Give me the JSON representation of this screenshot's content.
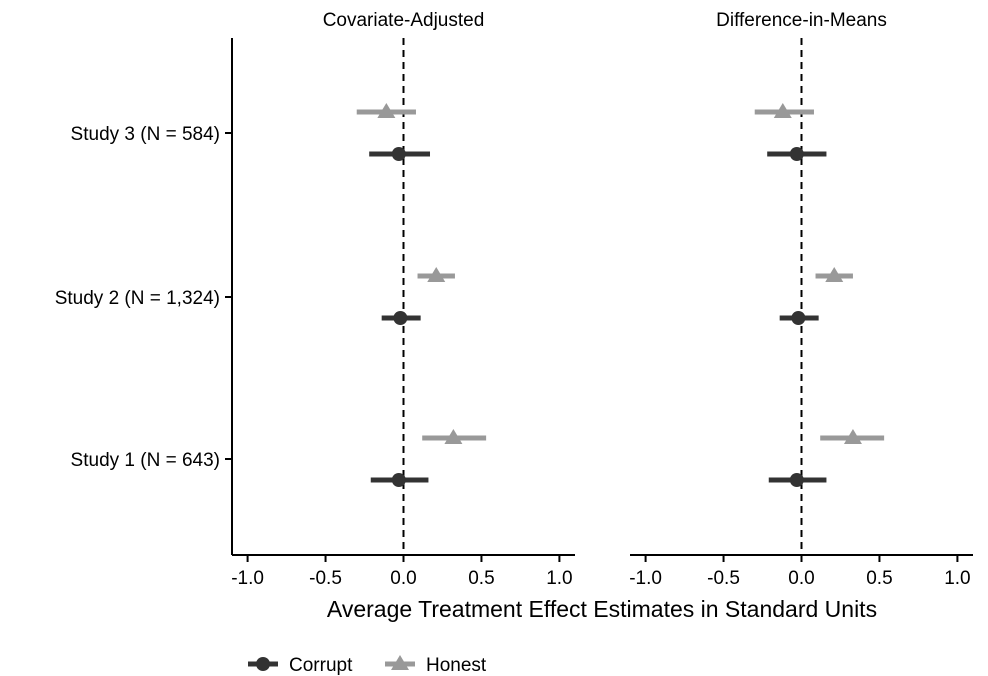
{
  "chart_data": {
    "type": "scatter",
    "subtype": "coefficient-plot",
    "xlabel": "Average Treatment Effect Estimates in Standard Units",
    "xlim": [
      -1.1,
      1.1
    ],
    "x_ticks": [
      -1.0,
      -0.5,
      0.0,
      0.5,
      1.0
    ],
    "x_tick_labels": [
      "-1.0",
      "-0.5",
      "0.0",
      "0.5",
      "1.0"
    ],
    "reference_line": 0,
    "categories": [
      "Study 3 (N = 584)",
      "Study 2 (N = 1,324)",
      "Study 1 (N = 643)"
    ],
    "legend": {
      "placement": "bottom",
      "entries": [
        {
          "name": "Corrupt",
          "color": "#333333",
          "marker": "circle"
        },
        {
          "name": "Honest",
          "color": "#999999",
          "marker": "triangle"
        }
      ]
    },
    "panels": [
      {
        "title": "Covariate-Adjusted",
        "series": [
          {
            "name": "Corrupt",
            "points": [
              {
                "study": "Study 3 (N = 584)",
                "estimate": -0.03,
                "lower": -0.22,
                "upper": 0.17
              },
              {
                "study": "Study 2 (N = 1,324)",
                "estimate": -0.02,
                "lower": -0.14,
                "upper": 0.11
              },
              {
                "study": "Study 1 (N = 643)",
                "estimate": -0.03,
                "lower": -0.21,
                "upper": 0.16
              }
            ]
          },
          {
            "name": "Honest",
            "points": [
              {
                "study": "Study 3 (N = 584)",
                "estimate": -0.11,
                "lower": -0.3,
                "upper": 0.08
              },
              {
                "study": "Study 2 (N = 1,324)",
                "estimate": 0.21,
                "lower": 0.09,
                "upper": 0.33
              },
              {
                "study": "Study 1 (N = 643)",
                "estimate": 0.32,
                "lower": 0.12,
                "upper": 0.53
              }
            ]
          }
        ]
      },
      {
        "title": "Difference-in-Means",
        "series": [
          {
            "name": "Corrupt",
            "points": [
              {
                "study": "Study 3 (N = 584)",
                "estimate": -0.03,
                "lower": -0.22,
                "upper": 0.16
              },
              {
                "study": "Study 2 (N = 1,324)",
                "estimate": -0.02,
                "lower": -0.14,
                "upper": 0.11
              },
              {
                "study": "Study 1 (N = 643)",
                "estimate": -0.03,
                "lower": -0.21,
                "upper": 0.16
              }
            ]
          },
          {
            "name": "Honest",
            "points": [
              {
                "study": "Study 3 (N = 584)",
                "estimate": -0.12,
                "lower": -0.3,
                "upper": 0.08
              },
              {
                "study": "Study 2 (N = 1,324)",
                "estimate": 0.21,
                "lower": 0.09,
                "upper": 0.33
              },
              {
                "study": "Study 1 (N = 643)",
                "estimate": 0.33,
                "lower": 0.12,
                "upper": 0.53
              }
            ]
          }
        ]
      }
    ]
  }
}
